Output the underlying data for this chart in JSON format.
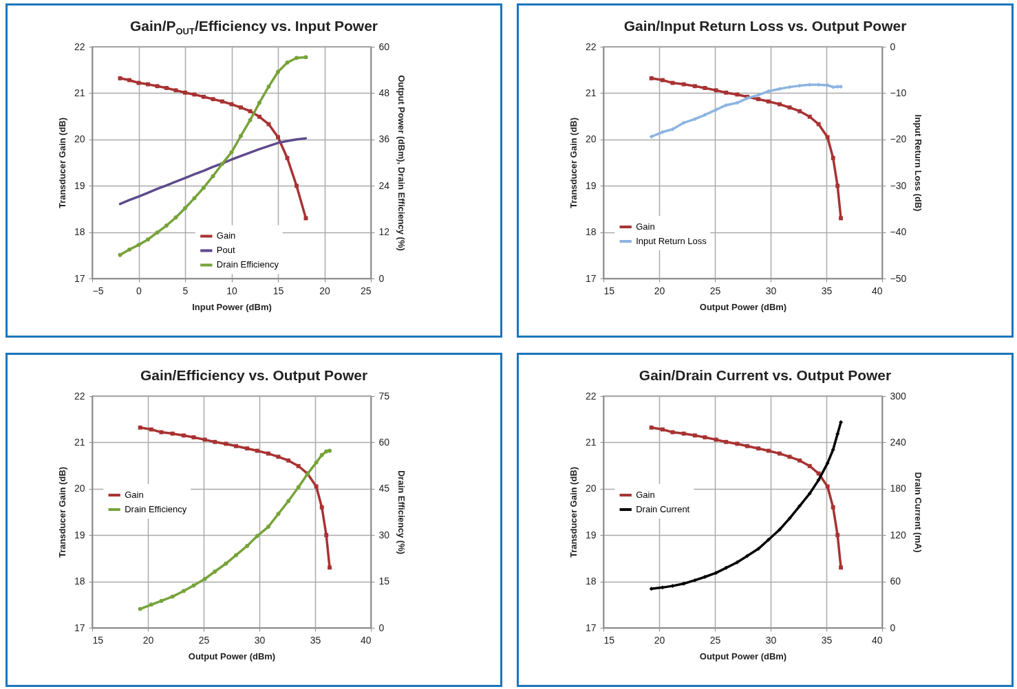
{
  "chart_data": [
    {
      "type": "line",
      "title": "Gain/P$_{OUT}$/Efficiency vs. Input Power",
      "xlabel": "Input Power (dBm)",
      "ylabel": "Transducer Gain (dB)",
      "y2label": "Output Power (dBm), Drain Efficiency (%)",
      "xlim": [
        -5,
        25
      ],
      "xticks": [
        -5,
        0,
        5,
        10,
        15,
        20,
        25
      ],
      "ylim": [
        17,
        22
      ],
      "yticks": [
        17,
        18,
        19,
        20,
        21,
        22
      ],
      "y2lim": [
        0,
        60
      ],
      "y2ticks": [
        0,
        12,
        24,
        36,
        48,
        60
      ],
      "grid": true,
      "legend": "bottom",
      "x": [
        -2,
        -1,
        0,
        1,
        2,
        3,
        4,
        5,
        6,
        7,
        8,
        9,
        10,
        11,
        12,
        13,
        14,
        15,
        16,
        17,
        18
      ],
      "series": [
        {
          "name": "Gain",
          "color": "#a83232",
          "marker": "square",
          "values": [
            21.32,
            21.28,
            21.22,
            21.19,
            21.15,
            21.11,
            21.06,
            21.01,
            20.97,
            20.92,
            20.87,
            20.82,
            20.76,
            20.69,
            20.61,
            20.49,
            20.33,
            20.05,
            19.6,
            19.0,
            18.3
          ]
        },
        {
          "name": "Pout",
          "color": "#5e4a8c",
          "marker": "none",
          "axis": "y2",
          "values": [
            19.3,
            20.3,
            21.2,
            22.2,
            23.2,
            24.1,
            25.1,
            26.0,
            27.0,
            27.9,
            28.9,
            29.8,
            30.8,
            31.7,
            32.6,
            33.5,
            34.3,
            35.1,
            35.6,
            36.0,
            36.3
          ]
        },
        {
          "name": "Drain Efficiency",
          "color": "#77a33a",
          "marker": "circle",
          "axis": "y2",
          "values": [
            6.1,
            7.5,
            8.7,
            10.1,
            11.9,
            13.7,
            15.8,
            18.2,
            20.8,
            23.5,
            26.5,
            29.7,
            32.7,
            36.9,
            41.0,
            45.5,
            49.7,
            53.5,
            55.9,
            57.1,
            57.3
          ]
        }
      ]
    },
    {
      "type": "line",
      "title": "Gain/Input Return Loss vs. Output Power",
      "xlabel": "Output Power (dBm)",
      "ylabel": "Transducer Gain (dB)",
      "y2label": "Input Return Loss (dB)",
      "xlim": [
        15,
        40
      ],
      "xticks": [
        15,
        20,
        25,
        30,
        35,
        40
      ],
      "ylim": [
        17,
        22
      ],
      "yticks": [
        17,
        18,
        19,
        20,
        21,
        22
      ],
      "y2lim": [
        -50,
        0
      ],
      "y2ticks": [
        -50,
        -40,
        -30,
        -20,
        -10,
        0
      ],
      "grid": true,
      "legend": "bottom left",
      "x": [
        19.3,
        20.3,
        21.2,
        22.2,
        23.2,
        24.1,
        25.1,
        26.0,
        27.0,
        27.9,
        28.9,
        29.8,
        30.8,
        31.7,
        32.6,
        33.5,
        34.3,
        35.1,
        35.6,
        36.0,
        36.3
      ],
      "series": [
        {
          "name": "Gain",
          "color": "#a83232",
          "marker": "square",
          "values": [
            21.32,
            21.28,
            21.22,
            21.19,
            21.15,
            21.11,
            21.06,
            21.01,
            20.97,
            20.92,
            20.87,
            20.82,
            20.76,
            20.69,
            20.61,
            20.49,
            20.33,
            20.05,
            19.6,
            19.0,
            18.3
          ]
        },
        {
          "name": "Input Return Loss",
          "color": "#8db4e2",
          "marker": "diamond",
          "axis": "y2",
          "values": [
            -19.4,
            -18.4,
            -17.8,
            -16.4,
            -15.6,
            -14.7,
            -13.6,
            -12.6,
            -12.1,
            -11.1,
            -10.4,
            -9.6,
            -9.1,
            -8.7,
            -8.4,
            -8.2,
            -8.2,
            -8.3,
            -8.7,
            -8.6,
            -8.6
          ]
        }
      ]
    },
    {
      "type": "line",
      "title": "Gain/Efficiency vs. Output Power",
      "xlabel": "Output Power (dBm)",
      "ylabel": "Transducer Gain (dB)",
      "y2label": "Drain Efficiency  (%)",
      "xlim": [
        15,
        40
      ],
      "xticks": [
        15,
        20,
        25,
        30,
        35,
        40
      ],
      "ylim": [
        17,
        22
      ],
      "yticks": [
        17,
        18,
        19,
        20,
        21,
        22
      ],
      "y2lim": [
        0,
        75
      ],
      "y2ticks": [
        0,
        15,
        30,
        45,
        60,
        75
      ],
      "grid": true,
      "legend": "left",
      "x": [
        19.3,
        20.3,
        21.2,
        22.2,
        23.2,
        24.1,
        25.1,
        26.0,
        27.0,
        27.9,
        28.9,
        29.8,
        30.8,
        31.7,
        32.6,
        33.5,
        34.3,
        35.1,
        35.6,
        36.0,
        36.3
      ],
      "series": [
        {
          "name": "Gain",
          "color": "#a83232",
          "marker": "square",
          "values": [
            21.32,
            21.28,
            21.22,
            21.19,
            21.15,
            21.11,
            21.06,
            21.01,
            20.97,
            20.92,
            20.87,
            20.82,
            20.76,
            20.69,
            20.61,
            20.49,
            20.33,
            20.05,
            19.6,
            19.0,
            18.3
          ]
        },
        {
          "name": "Drain Efficiency",
          "color": "#77a33a",
          "marker": "circle",
          "axis": "y2",
          "values": [
            6.1,
            7.5,
            8.7,
            10.1,
            11.9,
            13.7,
            15.8,
            18.2,
            20.8,
            23.5,
            26.5,
            29.7,
            32.7,
            36.9,
            41.0,
            45.5,
            49.7,
            53.5,
            55.9,
            57.1,
            57.3
          ]
        }
      ]
    },
    {
      "type": "line",
      "title": "Gain/Drain Current vs. Output Power",
      "xlabel": "Output Power (dBm)",
      "ylabel": "Transducer Gain (dB)",
      "y2label": "Drain Current (mA)",
      "xlim": [
        15,
        40
      ],
      "xticks": [
        15,
        20,
        25,
        30,
        35,
        40
      ],
      "ylim": [
        17,
        22
      ],
      "yticks": [
        17,
        18,
        19,
        20,
        21,
        22
      ],
      "y2lim": [
        0,
        300
      ],
      "y2ticks": [
        0,
        60,
        120,
        180,
        240,
        300
      ],
      "grid": true,
      "legend": "left",
      "x": [
        19.3,
        20.3,
        21.2,
        22.2,
        23.2,
        24.1,
        25.1,
        26.0,
        27.0,
        27.9,
        28.9,
        29.8,
        30.8,
        31.7,
        32.6,
        33.5,
        34.3,
        35.1,
        35.6,
        36.0,
        36.3
      ],
      "series": [
        {
          "name": "Gain",
          "color": "#a83232",
          "marker": "square",
          "values": [
            21.32,
            21.28,
            21.22,
            21.19,
            21.15,
            21.11,
            21.06,
            21.01,
            20.97,
            20.92,
            20.87,
            20.82,
            20.76,
            20.69,
            20.61,
            20.49,
            20.33,
            20.05,
            19.6,
            19.0,
            18.3
          ]
        },
        {
          "name": "Drain Current",
          "color": "#000000",
          "marker": "diamond",
          "axis": "y2",
          "values": [
            50.5,
            52.2,
            54.2,
            57.2,
            61.5,
            65.9,
            71.1,
            77.6,
            84.8,
            93,
            102.3,
            114,
            127.1,
            141.7,
            157.7,
            173.8,
            191.3,
            213.1,
            230.6,
            251,
            266.2
          ]
        }
      ]
    }
  ]
}
